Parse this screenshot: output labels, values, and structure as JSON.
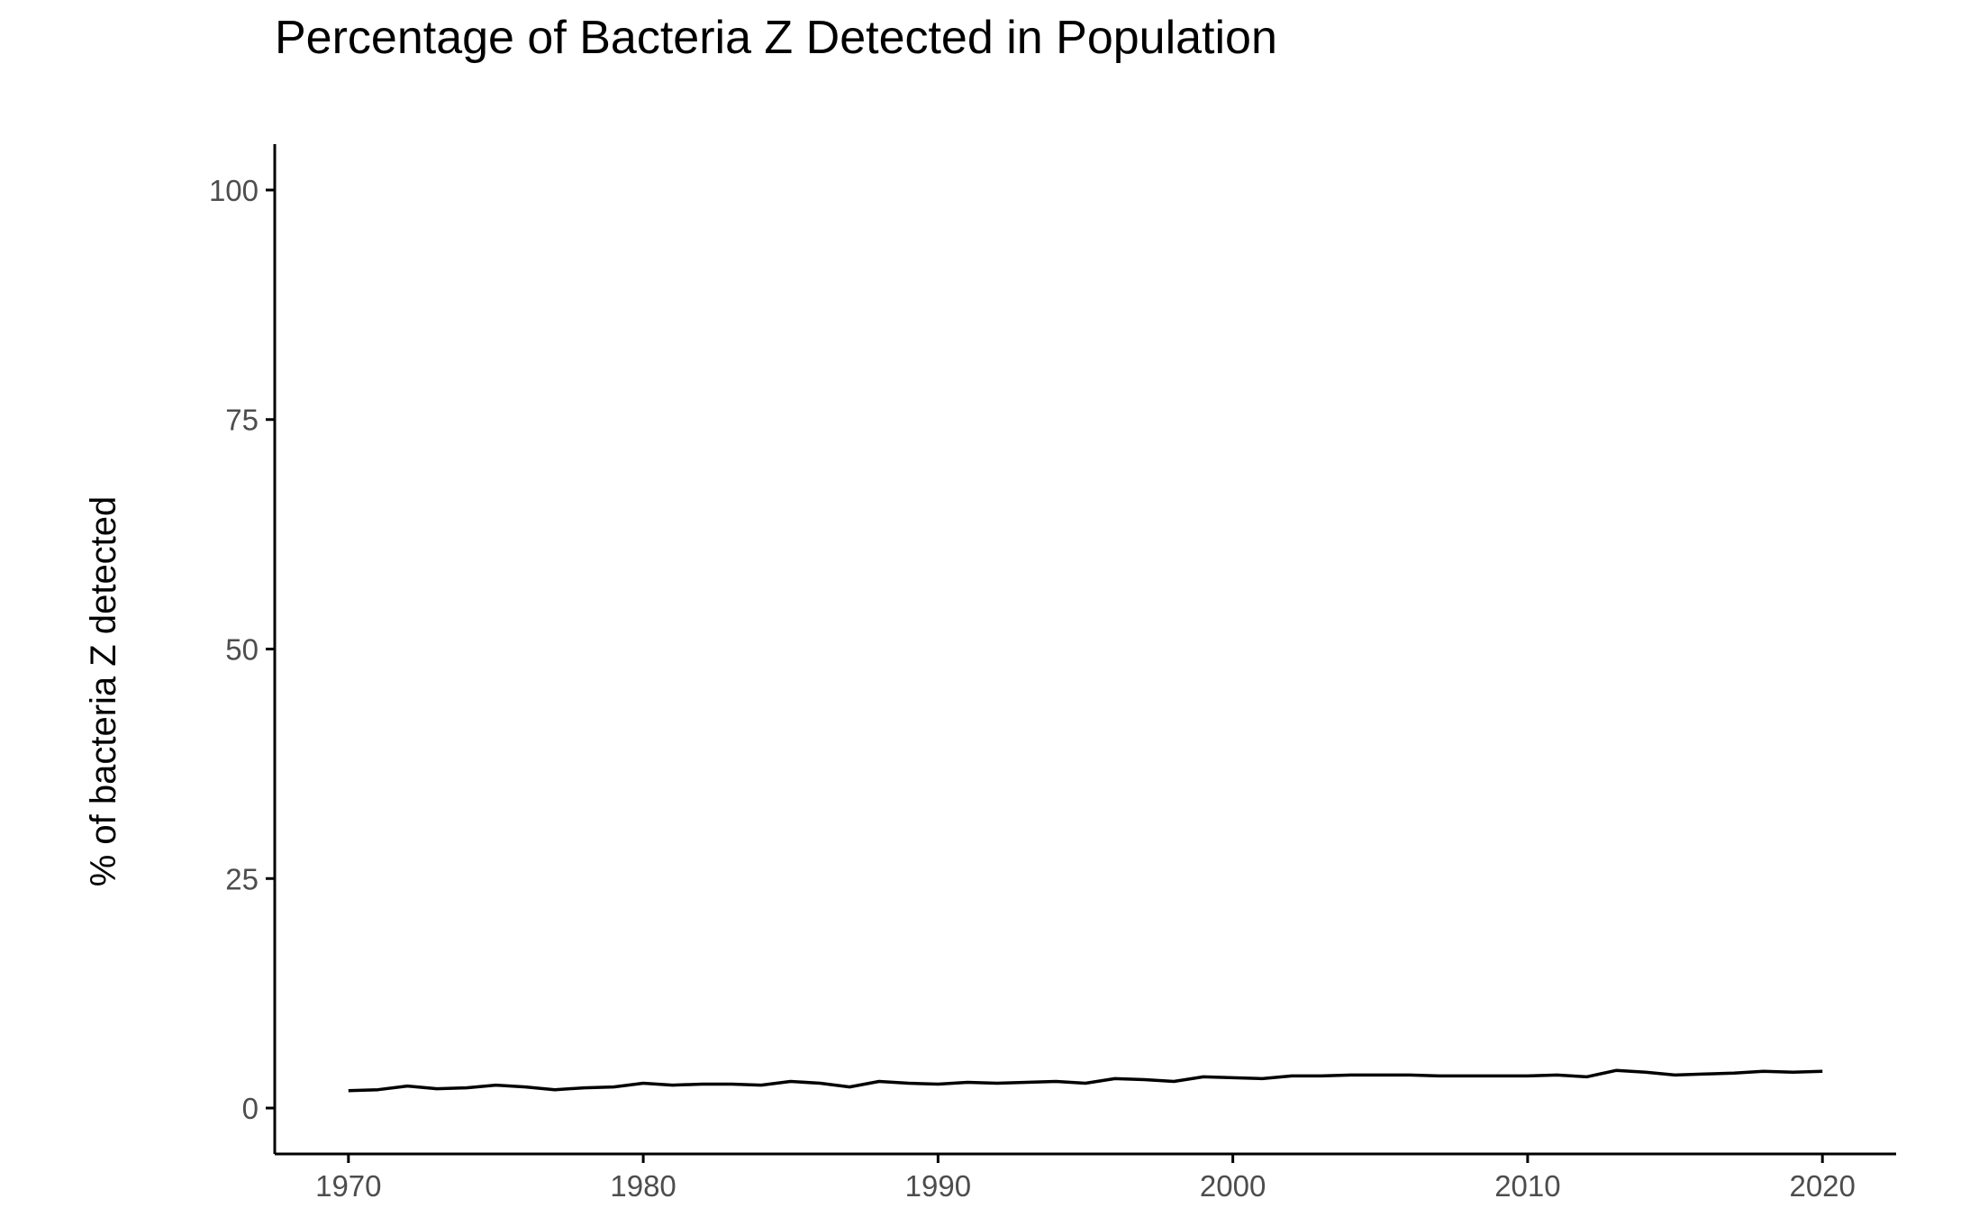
{
  "chart_data": {
    "type": "line",
    "title": "Percentage of Bacteria Z Detected in Population",
    "xlabel": "",
    "ylabel": "% of bacteria Z detected",
    "xlim": [
      1967.5,
      2022.5
    ],
    "ylim": [
      -5,
      105
    ],
    "x_ticks": [
      1970,
      1980,
      1990,
      2000,
      2010,
      2020
    ],
    "y_ticks": [
      0,
      25,
      50,
      75,
      100
    ],
    "grid": false,
    "line_color": "#000000",
    "series": [
      {
        "x": [
          1970,
          1971,
          1972,
          1973,
          1974,
          1975,
          1976,
          1977,
          1978,
          1979,
          1980,
          1981,
          1982,
          1983,
          1984,
          1985,
          1986,
          1987,
          1988,
          1989,
          1990,
          1991,
          1992,
          1993,
          1994,
          1995,
          1996,
          1997,
          1998,
          1999,
          2000,
          2001,
          2002,
          2003,
          2004,
          2005,
          2006,
          2007,
          2008,
          2009,
          2010,
          2011,
          2012,
          2013,
          2014,
          2015,
          2016,
          2017,
          2018,
          2019,
          2020
        ],
        "values": [
          1.9,
          2.0,
          2.4,
          2.1,
          2.2,
          2.5,
          2.3,
          2.0,
          2.2,
          2.3,
          2.7,
          2.5,
          2.6,
          2.6,
          2.5,
          2.9,
          2.7,
          2.3,
          2.9,
          2.7,
          2.6,
          2.8,
          2.7,
          2.8,
          2.9,
          2.7,
          3.2,
          3.1,
          2.9,
          3.4,
          3.3,
          3.2,
          3.5,
          3.5,
          3.6,
          3.6,
          3.6,
          3.5,
          3.5,
          3.5,
          3.5,
          3.6,
          3.4,
          4.1,
          3.9,
          3.6,
          3.7,
          3.8,
          4.0,
          3.9,
          4.0
        ]
      }
    ]
  }
}
